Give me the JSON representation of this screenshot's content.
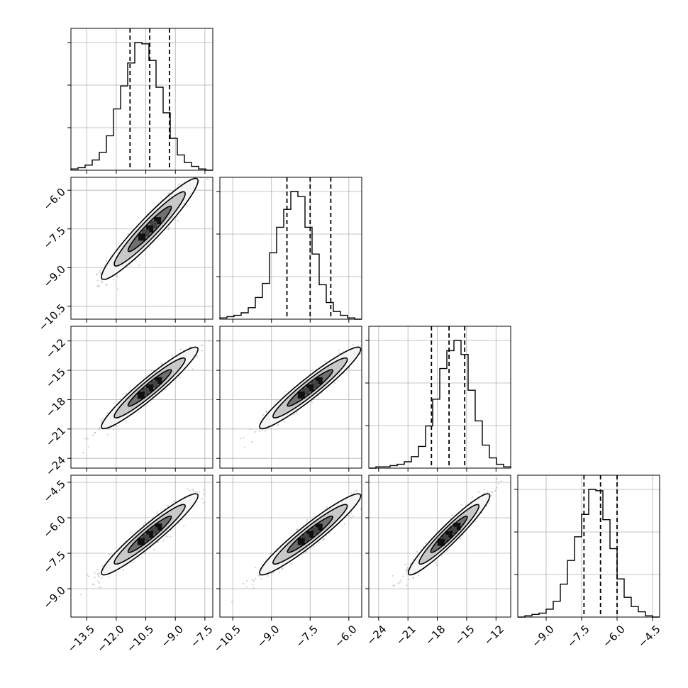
{
  "chart_data": {
    "type": "scatter",
    "title": "",
    "parameters": 4,
    "grid": true,
    "axes_ranges": [
      [
        -14.3,
        -7.1
      ],
      [
        -11.0,
        -5.5
      ],
      [
        -25.0,
        -10.5
      ],
      [
        -10.2,
        -4.2
      ]
    ],
    "tick_values": [
      [
        -13.5,
        -12.0,
        -10.5,
        -9.0,
        -7.5
      ],
      [
        -10.5,
        -9.0,
        -7.5,
        -6.0
      ],
      [
        -24,
        -21,
        -18,
        -15,
        -12
      ],
      [
        -9.0,
        -7.5,
        -6.0,
        -4.5
      ]
    ],
    "tick_labels": [
      [
        "−13.5",
        "−12.0",
        "−10.5",
        "−9.0",
        "−7.5"
      ],
      [
        "−10.5",
        "−9.0",
        "−7.5",
        "−6.0"
      ],
      [
        "−24",
        "−21",
        "−18",
        "−15",
        "−12"
      ],
      [
        "−9.0",
        "−7.5",
        "−6.0",
        "−4.5"
      ]
    ],
    "quantile_lines": [
      [
        -11.3,
        -10.3,
        -9.3
      ],
      [
        -8.4,
        -7.5,
        -6.7
      ],
      [
        -18.6,
        -16.8,
        -15.2
      ],
      [
        -7.4,
        -6.7,
        -6.0
      ]
    ],
    "histograms": [
      {
        "edges_start": -14.3,
        "edges_end": -7.1,
        "counts": [
          1,
          2,
          4,
          8,
          14,
          27,
          48,
          66,
          84,
          100,
          99,
          86,
          65,
          45,
          25,
          12,
          6,
          3,
          1,
          0
        ]
      },
      {
        "edges_start": -11.0,
        "edges_end": -5.5,
        "counts": [
          1,
          2,
          3,
          5,
          9,
          17,
          28,
          52,
          72,
          86,
          100,
          96,
          72,
          51,
          27,
          13,
          6,
          3,
          1,
          0
        ]
      },
      {
        "edges_start": -25.0,
        "edges_end": -10.5,
        "counts": [
          0,
          1,
          1,
          2,
          3,
          5,
          9,
          17,
          33,
          54,
          78,
          92,
          100,
          89,
          61,
          37,
          18,
          8,
          3,
          1
        ]
      },
      {
        "edges_start": -10.2,
        "edges_end": -4.2,
        "counts": [
          0,
          1,
          2,
          3,
          6,
          12,
          25,
          43,
          61,
          78,
          97,
          96,
          74,
          52,
          29,
          15,
          8,
          4,
          1,
          0
        ]
      }
    ],
    "pairs": [
      {
        "row": 1,
        "col": 0,
        "mean": [
          -10.3,
          -7.5
        ],
        "sd": [
          1.0,
          0.8
        ],
        "corr": 0.95
      },
      {
        "row": 2,
        "col": 0,
        "mean": [
          -10.3,
          -16.8
        ],
        "sd": [
          1.0,
          1.7
        ],
        "corr": 0.95
      },
      {
        "row": 2,
        "col": 1,
        "mean": [
          -7.5,
          -16.8
        ],
        "sd": [
          0.8,
          1.7
        ],
        "corr": 0.95
      },
      {
        "row": 3,
        "col": 0,
        "mean": [
          -10.3,
          -6.7
        ],
        "sd": [
          1.0,
          0.7
        ],
        "corr": 0.95
      },
      {
        "row": 3,
        "col": 1,
        "mean": [
          -7.5,
          -6.7
        ],
        "sd": [
          0.8,
          0.7
        ],
        "corr": 0.95
      },
      {
        "row": 3,
        "col": 2,
        "mean": [
          -16.8,
          -6.7
        ],
        "sd": [
          1.7,
          0.7
        ],
        "corr": 0.95
      }
    ],
    "colors": {
      "line": "#000000",
      "grid": "#b0b0b0",
      "points": "#7a7a7a"
    }
  }
}
